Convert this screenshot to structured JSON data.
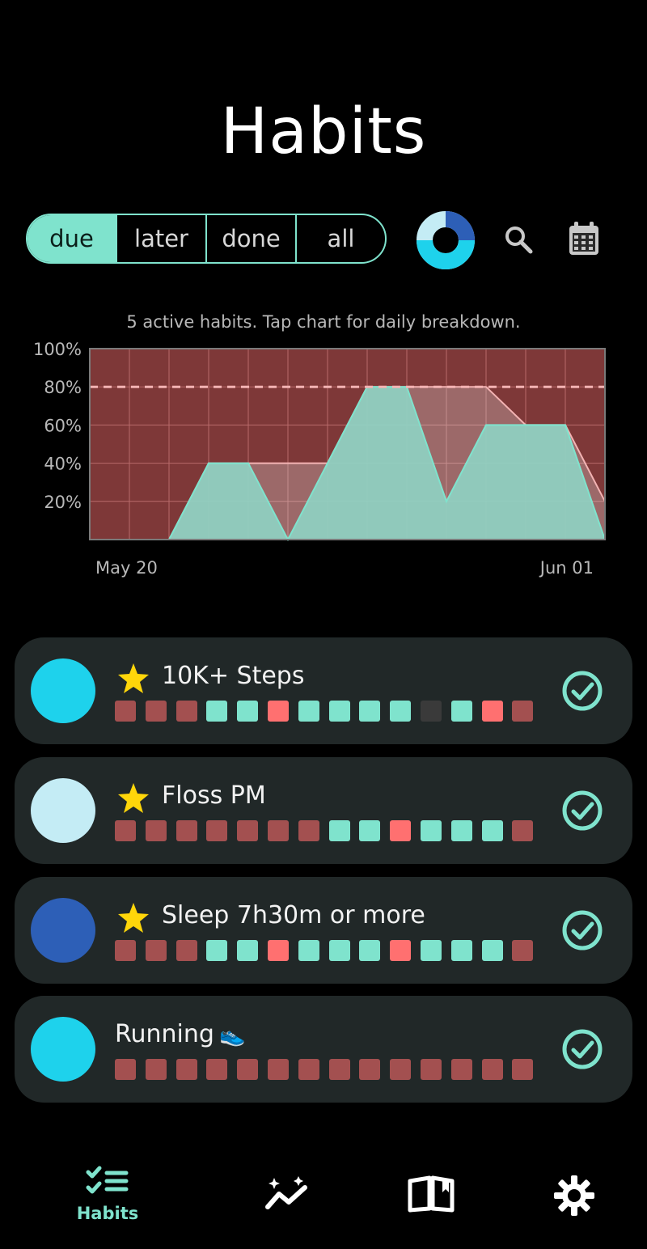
{
  "header": {
    "title": "Habits"
  },
  "filters": [
    {
      "label": "due",
      "active": true
    },
    {
      "label": "later",
      "active": false
    },
    {
      "label": "done",
      "active": false
    },
    {
      "label": "all",
      "active": false
    }
  ],
  "toolbar": {
    "donut_icon": "progress-donut-icon",
    "search_icon": "search-icon",
    "calendar_icon": "calendar-icon"
  },
  "caption": "5 active habits. Tap chart for daily breakdown.",
  "chart_data": {
    "type": "area",
    "ylim": [
      0,
      100
    ],
    "yticks": [
      "20%",
      "40%",
      "60%",
      "80%",
      "100%"
    ],
    "x_labels": [
      "May 20",
      "Jun 01"
    ],
    "target": 80,
    "series": [
      {
        "values": [
          0,
          0,
          0,
          40,
          40,
          0,
          40,
          80,
          80,
          20,
          60,
          60,
          60,
          0
        ]
      },
      {
        "values": [
          0,
          0,
          0,
          40,
          40,
          40,
          40,
          80,
          80,
          80,
          80,
          60,
          60,
          20
        ]
      }
    ],
    "colors": {
      "background": "#7e3838",
      "fill": "#8fd1c2",
      "line": "#7fe3cd",
      "target": "#f3b3b3"
    },
    "grid": true
  },
  "habits": [
    {
      "name": "10K+ Steps",
      "starred": true,
      "color": "#1ed2ec",
      "days": [
        "miss",
        "miss",
        "miss",
        "done",
        "done",
        "fail",
        "done",
        "done",
        "done",
        "done",
        "skip",
        "done",
        "fail",
        "miss"
      ]
    },
    {
      "name": "Floss PM",
      "starred": true,
      "color": "#c4ecf5",
      "days": [
        "miss",
        "miss",
        "miss",
        "miss",
        "miss",
        "miss",
        "miss",
        "done",
        "done",
        "fail",
        "done",
        "done",
        "done",
        "miss"
      ]
    },
    {
      "name": "Sleep 7h30m or more",
      "starred": true,
      "color": "#2d5fb7",
      "days": [
        "miss",
        "miss",
        "miss",
        "done",
        "done",
        "fail",
        "done",
        "done",
        "done",
        "fail",
        "done",
        "done",
        "done",
        "miss"
      ]
    },
    {
      "name": "Running",
      "starred": false,
      "emoji": "👟",
      "color": "#1ed2ec",
      "days": [
        "miss",
        "miss",
        "miss",
        "miss",
        "miss",
        "miss",
        "miss",
        "miss",
        "miss",
        "miss",
        "miss",
        "miss",
        "miss",
        "miss"
      ]
    }
  ],
  "status_colors": {
    "miss": "#a35050",
    "done": "#7fe3cd",
    "fail": "#ff7070",
    "skip": "#3a3a3a"
  },
  "nav": [
    {
      "label": "Habits",
      "icon": "habits-list-icon",
      "active": true
    },
    {
      "label": "",
      "icon": "trends-icon",
      "active": false
    },
    {
      "label": "",
      "icon": "journal-icon",
      "active": false
    },
    {
      "label": "",
      "icon": "settings-icon",
      "active": false
    }
  ]
}
